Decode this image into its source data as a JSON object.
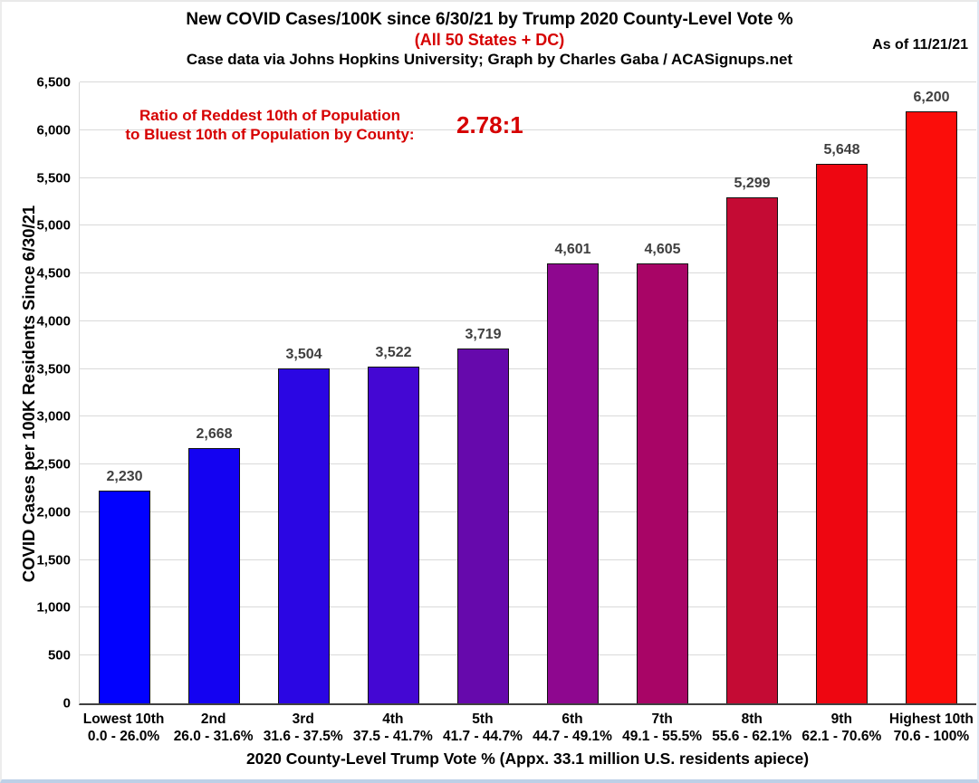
{
  "header": {
    "title": "New COVID Cases/100K since 6/30/21 by Trump 2020 County-Level Vote %",
    "subtitle": "(All 50 States + DC)",
    "credit": "Case data via Johns Hopkins University; Graph by Charles Gaba / ACASignups.net",
    "as_of": "As of 11/21/21"
  },
  "annotation": {
    "line1": "Ratio of Reddest 10th of Population",
    "line2": "to Bluest 10th of Population by County:",
    "ratio": "2.78:1"
  },
  "colors": {
    "accent_red": "#d60000",
    "grid": "#d9d9d9",
    "value_label": "#3f3f3f",
    "bar_border": "#121212"
  },
  "chart_data": {
    "type": "bar",
    "title": "New COVID Cases/100K since 6/30/21 by Trump 2020 County-Level Vote %",
    "xlabel": "2020 County-Level Trump Vote % (Appx. 33.1 million U.S. residents apiece)",
    "ylabel": "COVID Cases per 100K Residents Since 6/30/21",
    "ylim": [
      0,
      6500
    ],
    "ytick_step": 500,
    "yticks": [
      "0",
      "500",
      "1,000",
      "1,500",
      "2,000",
      "2,500",
      "3,000",
      "3,500",
      "4,000",
      "4,500",
      "5,000",
      "5,500",
      "6,000",
      "6,500"
    ],
    "grid": true,
    "legend": false,
    "categories": [
      {
        "tier": "Lowest 10th",
        "range": "0.0 - 26.0%"
      },
      {
        "tier": "2nd",
        "range": "26.0 - 31.6%"
      },
      {
        "tier": "3rd",
        "range": "31.6 - 37.5%"
      },
      {
        "tier": "4th",
        "range": "37.5 - 41.7%"
      },
      {
        "tier": "5th",
        "range": "41.7 - 44.7%"
      },
      {
        "tier": "6th",
        "range": "44.7 - 49.1%"
      },
      {
        "tier": "7th",
        "range": "49.1 - 55.5%"
      },
      {
        "tier": "8th",
        "range": "55.6 - 62.1%"
      },
      {
        "tier": "9th",
        "range": "62.1 - 70.6%"
      },
      {
        "tier": "Highest 10th",
        "range": "70.6 - 100%"
      }
    ],
    "values": [
      2230,
      2668,
      3504,
      3522,
      3719,
      4601,
      4605,
      5299,
      5648,
      6200
    ],
    "value_labels": [
      "2,230",
      "2,668",
      "3,504",
      "3,522",
      "3,719",
      "4,601",
      "4,605",
      "5,299",
      "5,648",
      "6,200"
    ],
    "bar_colors": [
      "#0201fe",
      "#1402f1",
      "#2b06e3",
      "#4407d3",
      "#6609ac",
      "#8e078f",
      "#a80566",
      "#c40b34",
      "#ee0611",
      "#fb0d0a"
    ]
  }
}
